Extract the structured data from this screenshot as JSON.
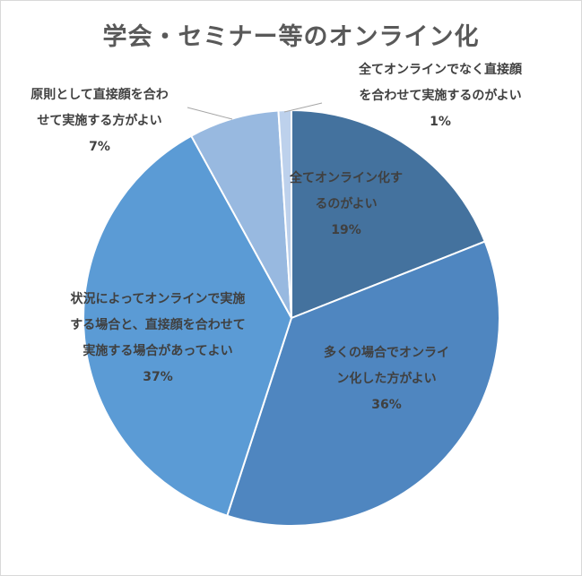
{
  "chart_data": {
    "type": "pie",
    "title": "学会・セミナー等のオンライン化",
    "start": "top-clockwise",
    "slices": [
      {
        "label": "全てオンライン化するのがよい",
        "lines": [
          "全てオンライン化す",
          "るのがよい"
        ],
        "value": 19,
        "pct": "19%",
        "color": "#44729e"
      },
      {
        "label": "多くの場合でオンライン化した方がよい",
        "lines": [
          "多くの場合でオンライ",
          "ン化した方がよい"
        ],
        "value": 36,
        "pct": "36%",
        "color": "#4f86c0"
      },
      {
        "label": "状況によってオンラインで実施する場合と、直接顔を合わせて実施する場合があってよい",
        "lines": [
          "状況によってオンラインで実施",
          "する場合と、直接顔を合わせて",
          "実施する場合があってよい"
        ],
        "value": 37,
        "pct": "37%",
        "color": "#5b9bd5"
      },
      {
        "label": "原則として直接顔を合わせて実施する方がよい",
        "lines": [
          "原則として直接顔を合わ",
          "せて実施する方がよい"
        ],
        "value": 7,
        "pct": "7%",
        "color": "#98b9e0"
      },
      {
        "label": "全てオンラインでなく直接顔を合わせて実施するのがよい",
        "lines": [
          "全てオンラインでなく直接顔",
          "を合わせて実施するのがよい"
        ],
        "value": 1,
        "pct": "1%",
        "color": "#bdd1ec"
      }
    ]
  }
}
